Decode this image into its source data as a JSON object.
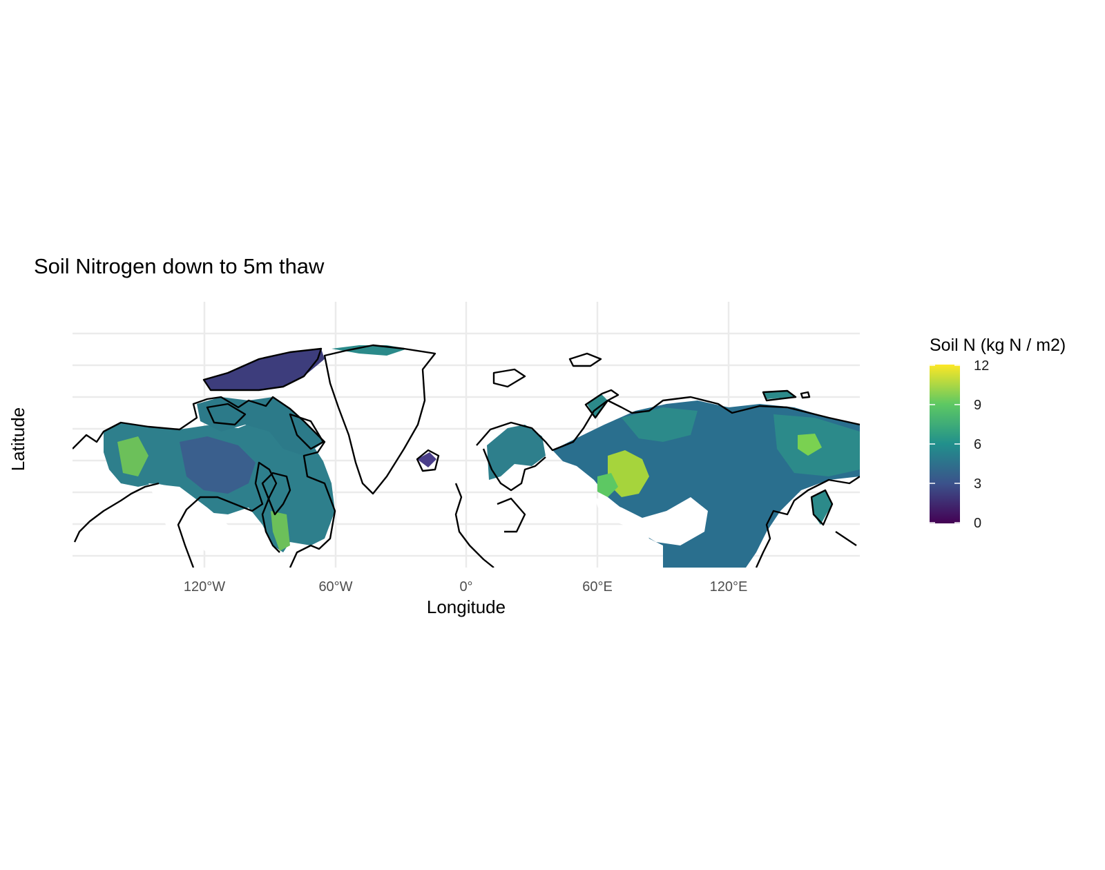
{
  "title": "Soil Nitrogen down to 5m thaw",
  "x_axis": {
    "label": "Longitude",
    "ticks": [
      "120°W",
      "60°W",
      "0°",
      "60°E",
      "120°E"
    ],
    "tick_values": [
      -120,
      -60,
      0,
      60,
      120
    ]
  },
  "y_axis": {
    "label": "Latitude"
  },
  "legend": {
    "title": "Soil N (kg N / m2)",
    "ticks": [
      "12",
      "9",
      "6",
      "3",
      "0"
    ],
    "tick_values": [
      12,
      9,
      6,
      3,
      0
    ],
    "range": [
      0,
      12
    ],
    "colors": [
      "#440154",
      "#3b528b",
      "#21908c",
      "#5dc863",
      "#fde725"
    ]
  },
  "chart_data": {
    "type": "heatmap",
    "title": "Soil Nitrogen down to 5m thaw",
    "xlabel": "Longitude",
    "ylabel": "Latitude",
    "xlim": [
      -180,
      180
    ],
    "x_ticks": [
      -120,
      -60,
      0,
      60,
      120
    ],
    "grid": true,
    "legend_placement": "right",
    "colorbar": {
      "title": "Soil N (kg N / m2)",
      "min": 0,
      "max": 12,
      "palette": "viridis"
    },
    "colors": {
      "land_outline": "#000000",
      "gridline": "#ebebeb",
      "dominant_fill": "#2a6f8e"
    }
  }
}
